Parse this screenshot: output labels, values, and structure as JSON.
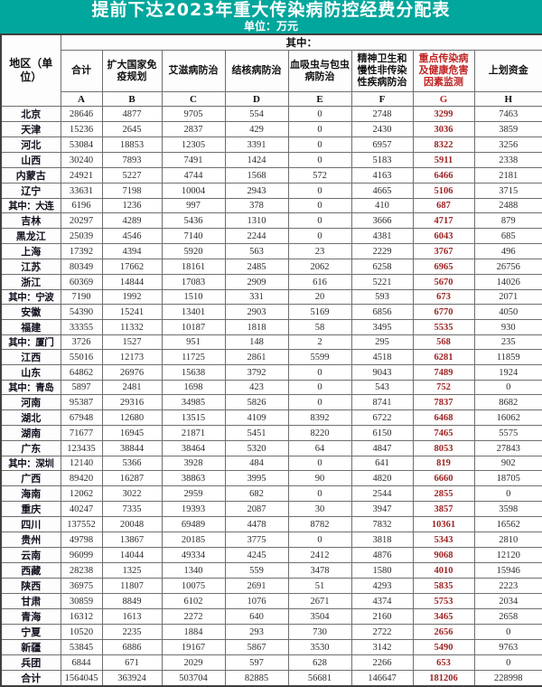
{
  "title": "提前下达2023年重大传染病防控经费分配表",
  "unit": "单位：万元",
  "colors": {
    "header_bg": "#01a69c",
    "accent_red": "#c02525",
    "value_red": "#9e2424"
  },
  "table": {
    "region_header": "地区（单位）",
    "among_which": "其中：",
    "columns": [
      {
        "letter": "A",
        "name": "合计",
        "highlight": false
      },
      {
        "letter": "B",
        "name": "扩大国家免疫规划",
        "highlight": false
      },
      {
        "letter": "C",
        "name": "艾滋病防治",
        "highlight": false
      },
      {
        "letter": "D",
        "name": "结核病防治",
        "highlight": false
      },
      {
        "letter": "E",
        "name": "血吸虫与包虫病防治",
        "highlight": false
      },
      {
        "letter": "F",
        "name": "精神卫生和慢性非传染性疾病防治",
        "highlight": false
      },
      {
        "letter": "G",
        "name": "重点传染病及健康危害因素监测",
        "highlight": true
      },
      {
        "letter": "H",
        "name": "上划资金",
        "highlight": false
      }
    ],
    "rows": [
      {
        "region": "北京",
        "sub": false,
        "values": [
          28646,
          4877,
          9705,
          554,
          0,
          2748,
          3299,
          7463
        ]
      },
      {
        "region": "天津",
        "sub": false,
        "values": [
          15236,
          2645,
          2837,
          429,
          0,
          2430,
          3036,
          3859
        ]
      },
      {
        "region": "河北",
        "sub": false,
        "values": [
          53084,
          18853,
          12305,
          3391,
          0,
          6957,
          8322,
          3256
        ]
      },
      {
        "region": "山西",
        "sub": false,
        "values": [
          30240,
          7893,
          7491,
          1424,
          0,
          5183,
          5911,
          2338
        ]
      },
      {
        "region": "内蒙古",
        "sub": false,
        "values": [
          24921,
          5227,
          4744,
          1568,
          572,
          4163,
          6466,
          2181
        ]
      },
      {
        "region": "辽宁",
        "sub": false,
        "values": [
          33631,
          7198,
          10004,
          2943,
          0,
          4665,
          5106,
          3715
        ]
      },
      {
        "region": "其中：大连",
        "sub": true,
        "values": [
          6196,
          1236,
          997,
          378,
          0,
          410,
          687,
          2488
        ]
      },
      {
        "region": "吉林",
        "sub": false,
        "values": [
          20297,
          4289,
          5436,
          1310,
          0,
          3666,
          4717,
          879
        ]
      },
      {
        "region": "黑龙江",
        "sub": false,
        "values": [
          25039,
          4546,
          7140,
          2244,
          0,
          4381,
          6043,
          685
        ]
      },
      {
        "region": "上海",
        "sub": false,
        "values": [
          17392,
          4394,
          5920,
          563,
          23,
          2229,
          3767,
          496
        ]
      },
      {
        "region": "江苏",
        "sub": false,
        "values": [
          80349,
          17662,
          18161,
          2485,
          2062,
          6258,
          6965,
          26756
        ]
      },
      {
        "region": "浙江",
        "sub": false,
        "values": [
          60369,
          14844,
          17083,
          2909,
          616,
          5221,
          5670,
          14026
        ]
      },
      {
        "region": "其中：宁波",
        "sub": true,
        "values": [
          7190,
          1992,
          1510,
          331,
          20,
          593,
          673,
          2071
        ]
      },
      {
        "region": "安徽",
        "sub": false,
        "values": [
          54390,
          15241,
          13401,
          2903,
          5169,
          6856,
          6770,
          4050
        ]
      },
      {
        "region": "福建",
        "sub": false,
        "values": [
          33355,
          11332,
          10187,
          1818,
          58,
          3495,
          5535,
          930
        ]
      },
      {
        "region": "其中：厦门",
        "sub": true,
        "values": [
          3726,
          1527,
          951,
          148,
          2,
          295,
          568,
          235
        ]
      },
      {
        "region": "江西",
        "sub": false,
        "values": [
          55016,
          12173,
          11725,
          2861,
          5599,
          4518,
          6281,
          11859
        ]
      },
      {
        "region": "山东",
        "sub": false,
        "values": [
          64862,
          26976,
          15638,
          3792,
          0,
          9043,
          7489,
          1924
        ]
      },
      {
        "region": "其中：青岛",
        "sub": true,
        "values": [
          5897,
          2481,
          1698,
          423,
          0,
          543,
          752,
          0
        ]
      },
      {
        "region": "河南",
        "sub": false,
        "values": [
          95387,
          29316,
          34985,
          5826,
          0,
          8741,
          7837,
          8682
        ]
      },
      {
        "region": "湖北",
        "sub": false,
        "values": [
          67948,
          12680,
          13515,
          4109,
          8392,
          6722,
          6468,
          16062
        ]
      },
      {
        "region": "湖南",
        "sub": false,
        "values": [
          71677,
          16945,
          21871,
          5451,
          8220,
          6150,
          7465,
          5575
        ]
      },
      {
        "region": "广东",
        "sub": false,
        "values": [
          123435,
          38844,
          38464,
          5320,
          64,
          4847,
          8053,
          27843
        ]
      },
      {
        "region": "其中：深圳",
        "sub": true,
        "values": [
          12140,
          5366,
          3928,
          484,
          0,
          641,
          819,
          902
        ]
      },
      {
        "region": "广西",
        "sub": false,
        "values": [
          89420,
          16287,
          38863,
          3995,
          90,
          4820,
          6660,
          18705
        ]
      },
      {
        "region": "海南",
        "sub": false,
        "values": [
          12062,
          3022,
          2959,
          682,
          0,
          2544,
          2855,
          0
        ]
      },
      {
        "region": "重庆",
        "sub": false,
        "values": [
          40247,
          7335,
          19393,
          2087,
          30,
          3947,
          3857,
          3598
        ]
      },
      {
        "region": "四川",
        "sub": false,
        "values": [
          137552,
          20048,
          69489,
          4478,
          8782,
          7832,
          10361,
          16562
        ]
      },
      {
        "region": "贵州",
        "sub": false,
        "values": [
          49798,
          13867,
          20185,
          3775,
          0,
          3818,
          5343,
          2810
        ]
      },
      {
        "region": "云南",
        "sub": false,
        "values": [
          96099,
          14044,
          49334,
          4245,
          2412,
          4876,
          9068,
          12120
        ]
      },
      {
        "region": "西藏",
        "sub": false,
        "values": [
          28238,
          1325,
          1340,
          559,
          3478,
          1580,
          4010,
          15946
        ]
      },
      {
        "region": "陕西",
        "sub": false,
        "values": [
          36975,
          11807,
          10075,
          2691,
          51,
          4293,
          5835,
          2223
        ]
      },
      {
        "region": "甘肃",
        "sub": false,
        "values": [
          30859,
          8849,
          6102,
          1076,
          2671,
          4374,
          5753,
          2034
        ]
      },
      {
        "region": "青海",
        "sub": false,
        "values": [
          16312,
          1613,
          2272,
          640,
          3504,
          2160,
          3465,
          2658
        ]
      },
      {
        "region": "宁夏",
        "sub": false,
        "values": [
          10520,
          2235,
          1884,
          293,
          730,
          2722,
          2656,
          0
        ]
      },
      {
        "region": "新疆",
        "sub": false,
        "values": [
          53845,
          6886,
          19167,
          5867,
          3530,
          3142,
          5490,
          9763
        ]
      },
      {
        "region": "兵团",
        "sub": false,
        "values": [
          6844,
          671,
          2029,
          597,
          628,
          2266,
          653,
          0
        ]
      },
      {
        "region": "合计",
        "sub": false,
        "values": [
          1564045,
          363924,
          503704,
          82885,
          56681,
          146647,
          181206,
          228998
        ]
      }
    ]
  }
}
